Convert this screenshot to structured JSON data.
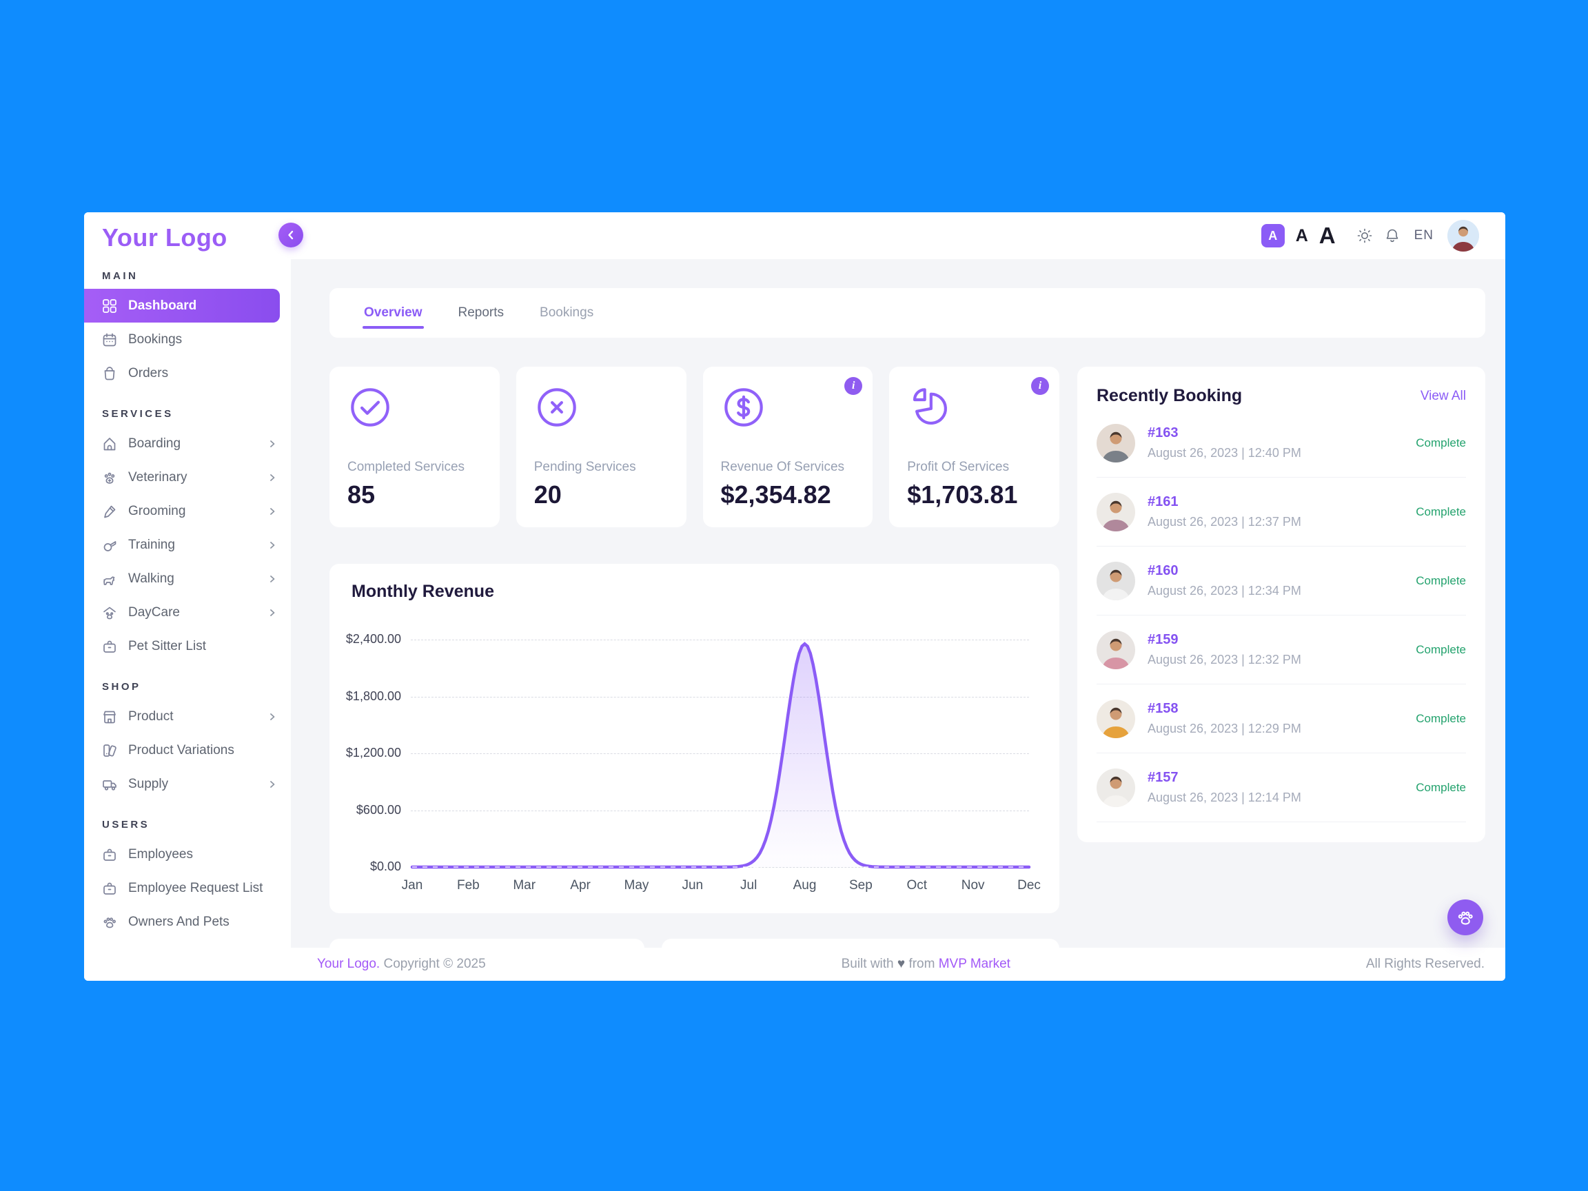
{
  "app": {
    "logo": "Your Logo"
  },
  "topbar": {
    "font_sizes": [
      "A",
      "A",
      "A"
    ],
    "selected_font_size_index": 0,
    "language": "EN",
    "icons": [
      "chevron-left-icon",
      "sun-icon",
      "bell-icon",
      "user-avatar"
    ]
  },
  "tabs": {
    "items": [
      {
        "label": "Overview",
        "active": true
      },
      {
        "label": "Reports",
        "active": false
      },
      {
        "label": "Bookings",
        "active": false
      }
    ]
  },
  "sidebar": {
    "sections": [
      {
        "label": "MAIN",
        "items": [
          {
            "label": "Dashboard",
            "icon": "grid-icon",
            "active": true
          },
          {
            "label": "Bookings",
            "icon": "calendar-icon"
          },
          {
            "label": "Orders",
            "icon": "bag-icon"
          }
        ]
      },
      {
        "label": "SERVICES",
        "items": [
          {
            "label": "Boarding",
            "icon": "doghouse-icon",
            "expandable": true
          },
          {
            "label": "Veterinary",
            "icon": "vet-paw-icon",
            "expandable": true
          },
          {
            "label": "Grooming",
            "icon": "trimmer-icon",
            "expandable": true
          },
          {
            "label": "Training",
            "icon": "whistle-icon",
            "expandable": true
          },
          {
            "label": "Walking",
            "icon": "dog-icon",
            "expandable": true
          },
          {
            "label": "DayCare",
            "icon": "paw-shelter-icon",
            "expandable": true
          },
          {
            "label": "Pet Sitter List",
            "icon": "briefcase-icon"
          }
        ]
      },
      {
        "label": "SHOP",
        "items": [
          {
            "label": "Product",
            "icon": "storefront-icon",
            "expandable": true
          },
          {
            "label": "Product Variations",
            "icon": "swatches-icon"
          },
          {
            "label": "Supply",
            "icon": "truck-icon",
            "expandable": true
          }
        ]
      },
      {
        "label": "USERS",
        "items": [
          {
            "label": "Employees",
            "icon": "briefcase-icon"
          },
          {
            "label": "Employee Request List",
            "icon": "briefcase-icon"
          },
          {
            "label": "Owners And Pets",
            "icon": "paw-icon"
          }
        ]
      }
    ]
  },
  "stats": {
    "cards": [
      {
        "label": "Completed Services",
        "value": "85",
        "icon": "check-circle-icon",
        "info_badge": false
      },
      {
        "label": "Pending Services",
        "value": "20",
        "icon": "x-circle-icon",
        "info_badge": false
      },
      {
        "label": "Revenue Of Services",
        "value": "$2,354.82",
        "icon": "dollar-circle-icon",
        "info_badge": true
      },
      {
        "label": "Profit Of Services",
        "value": "$1,703.81",
        "icon": "pie-chart-icon",
        "info_badge": true
      }
    ],
    "info_badge_glyph": "i"
  },
  "chart_data": {
    "type": "area",
    "title": "Monthly Revenue",
    "x": [
      "Jan",
      "Feb",
      "Mar",
      "Apr",
      "May",
      "Jun",
      "Jul",
      "Aug",
      "Sep",
      "Oct",
      "Nov",
      "Dec"
    ],
    "values": [
      0,
      0,
      0,
      0,
      0,
      0,
      0,
      2354.82,
      0,
      0,
      0,
      0
    ],
    "y_ticks": [
      "$2,400.00",
      "$1,800.00",
      "$1,200.00",
      "$600.00",
      "$0.00"
    ],
    "y_tick_values": [
      2400,
      1800,
      1200,
      600,
      0
    ],
    "ylim": [
      0,
      2400
    ],
    "grid": "dashed-horizontal",
    "legend": "none",
    "line_color": "#8B5CF6"
  },
  "recent": {
    "title": "Recently Booking",
    "view_all": "View All",
    "items": [
      {
        "id": "#163",
        "datetime": "August 26, 2023 | 12:40 PM",
        "status": "Complete",
        "avatar": {
          "bg": "#E4DAD2",
          "shirt": "#7A8088"
        }
      },
      {
        "id": "#161",
        "datetime": "August 26, 2023 | 12:37 PM",
        "status": "Complete",
        "avatar": {
          "bg": "#EDEAE6",
          "shirt": "#B0889B"
        }
      },
      {
        "id": "#160",
        "datetime": "August 26, 2023 | 12:34 PM",
        "status": "Complete",
        "avatar": {
          "bg": "#E3E3E3",
          "shirt": "#F2F2F2"
        }
      },
      {
        "id": "#159",
        "datetime": "August 26, 2023 | 12:32 PM",
        "status": "Complete",
        "avatar": {
          "bg": "#E8E4E2",
          "shirt": "#D795A5"
        }
      },
      {
        "id": "#158",
        "datetime": "August 26, 2023 | 12:29 PM",
        "status": "Complete",
        "avatar": {
          "bg": "#EFEAE3",
          "shirt": "#E6A23C"
        }
      },
      {
        "id": "#157",
        "datetime": "August 26, 2023 | 12:14 PM",
        "status": "Complete",
        "avatar": {
          "bg": "#EDEBE8",
          "shirt": "#F5F3F0"
        }
      }
    ]
  },
  "footer": {
    "brand": "Your Logo.",
    "copyright": "Copyright © 2025",
    "built_prefix": "Built with",
    "built_heart": "♥",
    "built_mid": "from",
    "built_brand": "MVP Market",
    "rights": "All Rights Reserved."
  },
  "colors": {
    "accent": "#8B5CF6",
    "background": "#0F8CFE",
    "success": "#23A26D",
    "active_gradient": [
      "#A55EF6",
      "#8A4DEE"
    ]
  }
}
